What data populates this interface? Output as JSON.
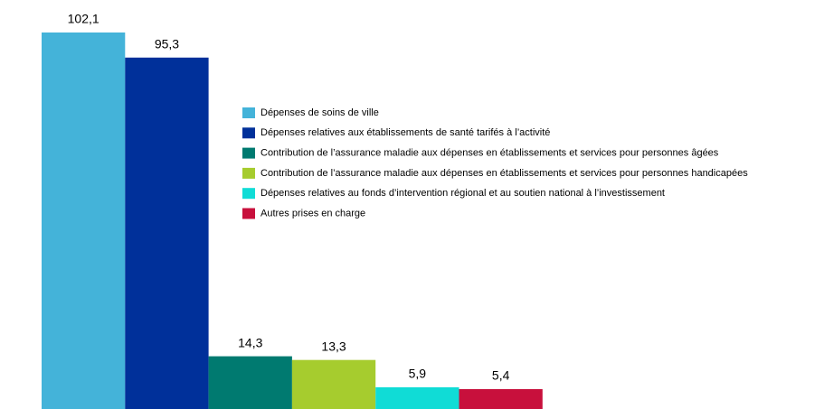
{
  "chart_data": {
    "type": "bar",
    "categories": [
      "Dépenses de soins de ville",
      "Dépenses relatives aux établissements de santé tarifés à l’activité",
      "Contribution de l’assurance maladie aux dépenses en établissements et services pour personnes âgées",
      "Contribution de l’assurance maladie aux dépenses en établissements et services pour personnes handicapées",
      "Dépenses relatives au fonds d’intervention régional et au soutien national à l’investissement",
      "Autres prises en charge"
    ],
    "values": [
      102.1,
      95.3,
      14.3,
      13.3,
      5.9,
      5.4
    ],
    "value_labels": [
      "102,1",
      "95,3",
      "14,3",
      "13,3",
      "5,9",
      "5,4"
    ],
    "colors": [
      "#44b3d9",
      "#00309a",
      "#007a70",
      "#a6cc2e",
      "#10dcd6",
      "#c8103c"
    ],
    "legend": "right"
  }
}
